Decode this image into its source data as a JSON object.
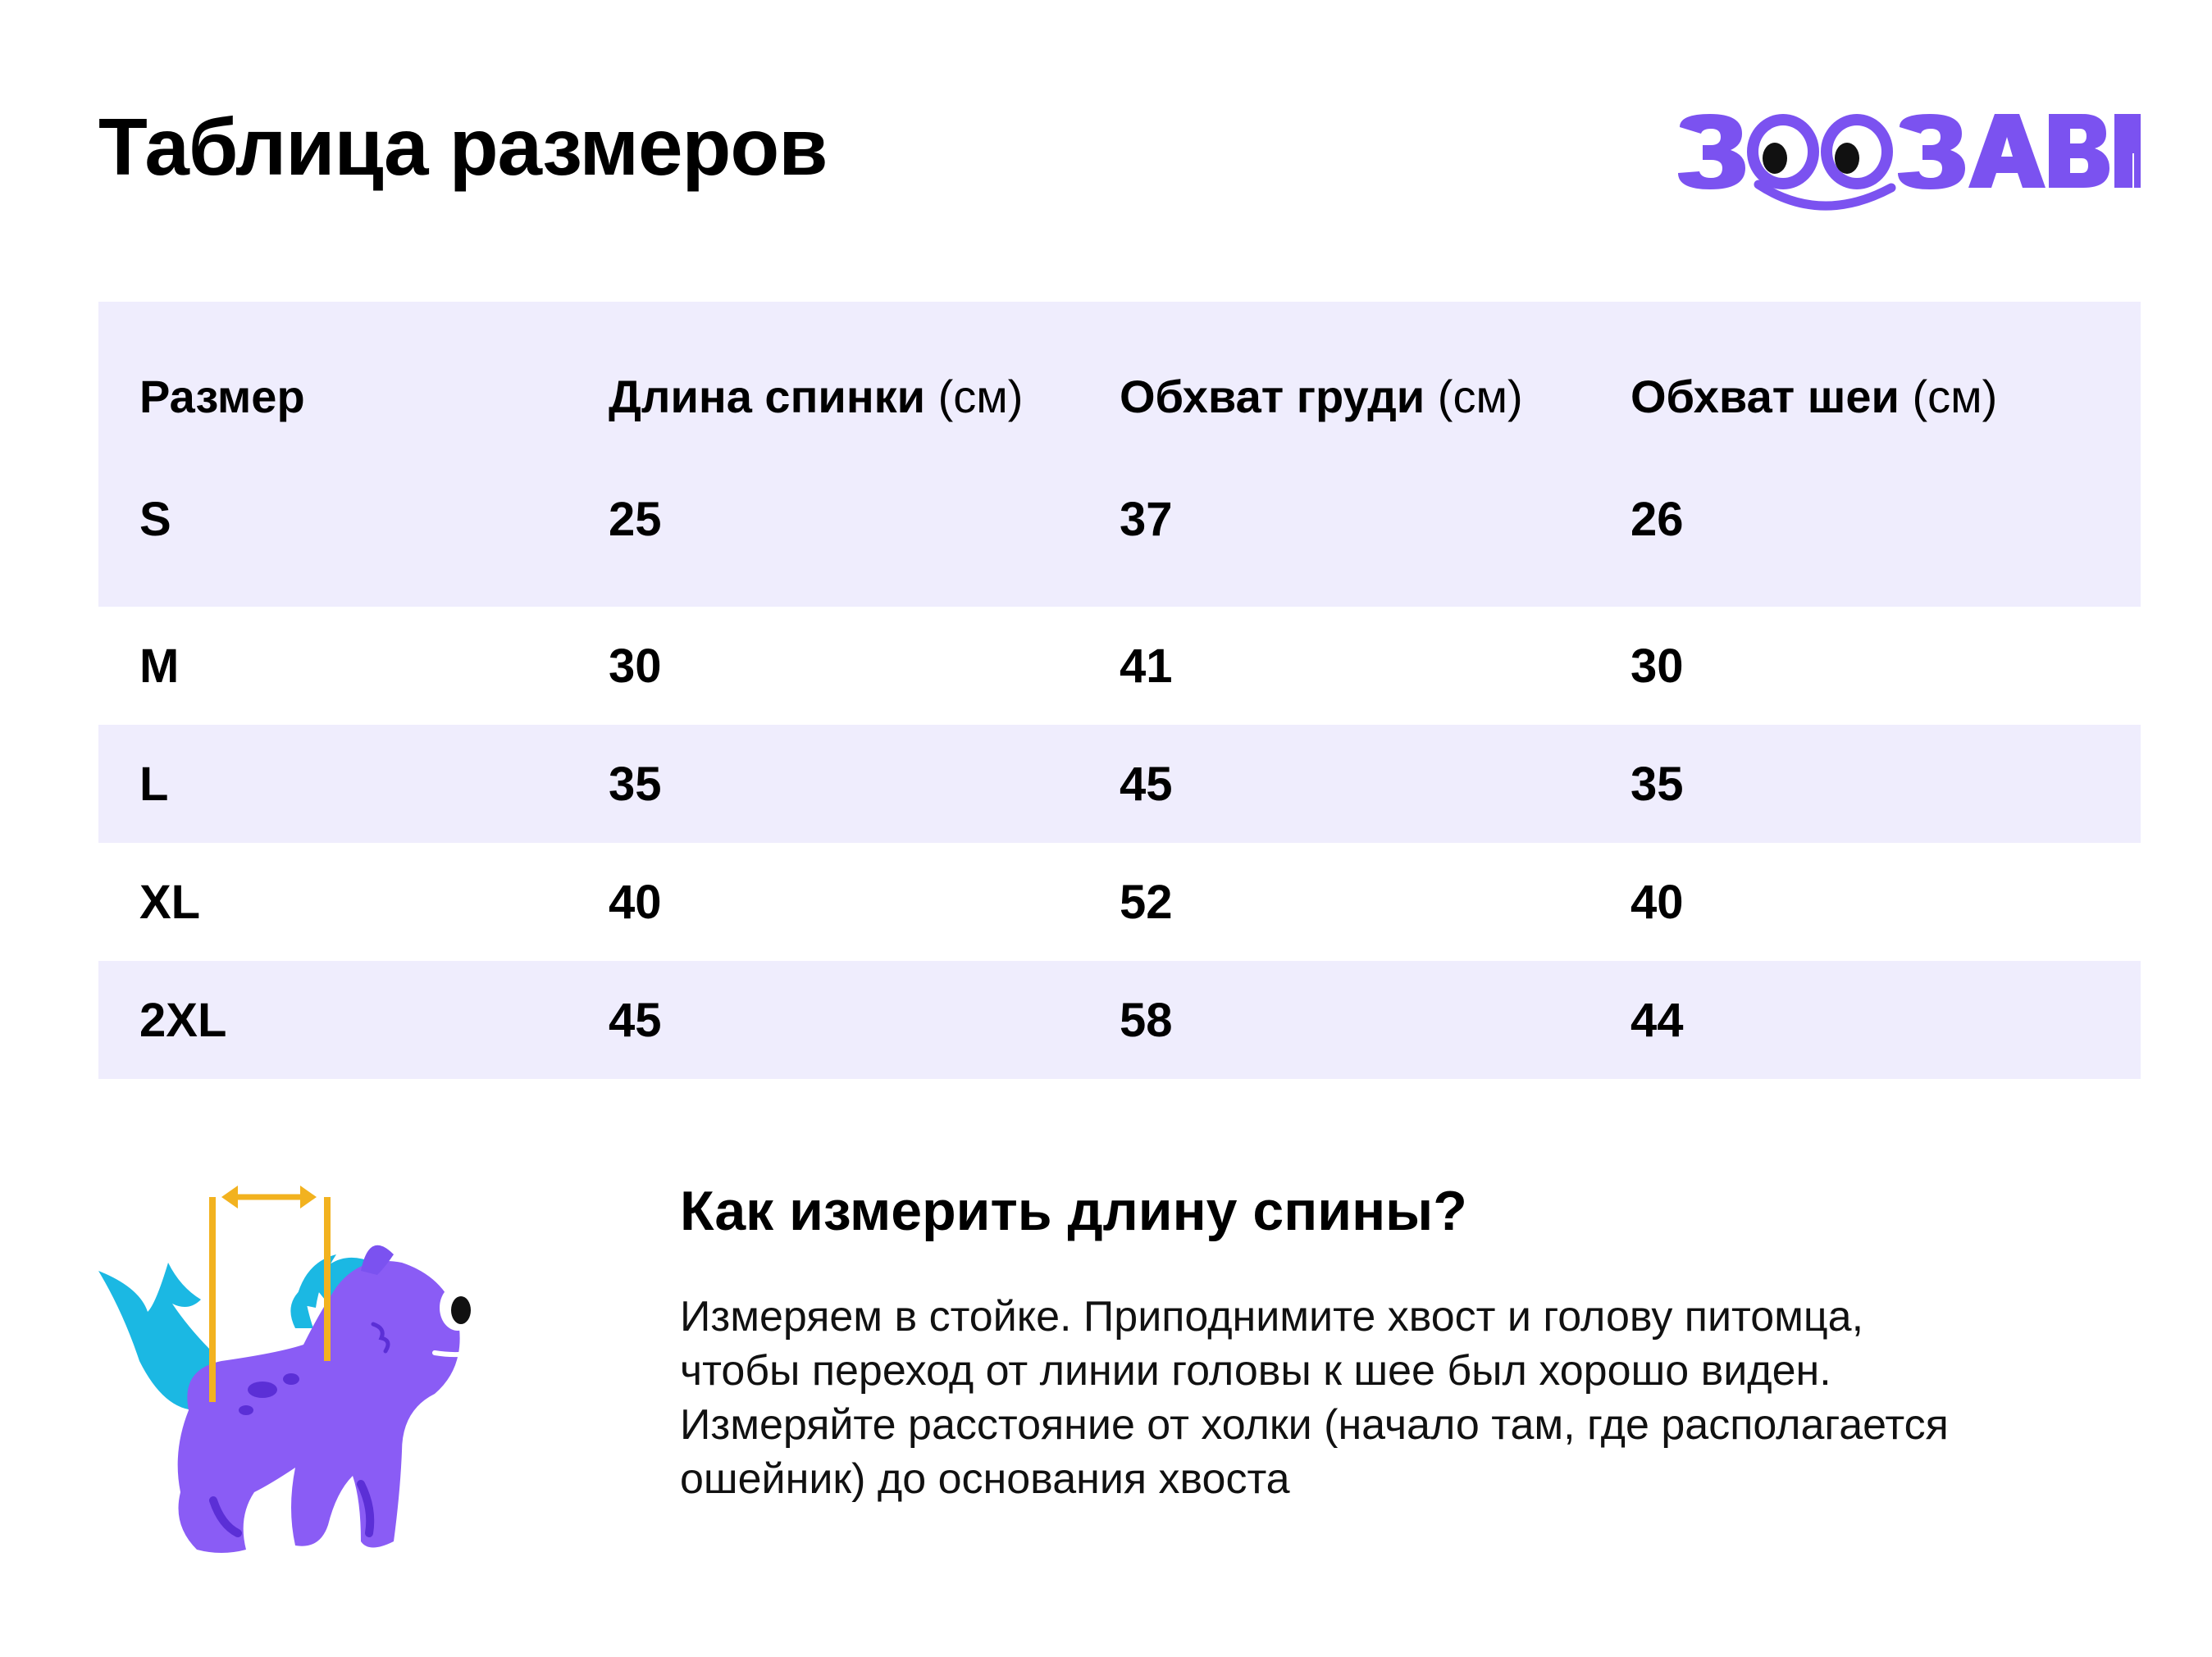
{
  "title": "Таблица размеров",
  "logo": {
    "text": "ЗООЗАВР",
    "color": "#7b52f0"
  },
  "table": {
    "headers": [
      {
        "bold": "Размер",
        "unit": ""
      },
      {
        "bold": "Длина спинки",
        "unit": "(см)"
      },
      {
        "bold": "Обхват груди",
        "unit": "(см)"
      },
      {
        "bold": "Обхват шеи",
        "unit": "(см)"
      }
    ],
    "rows": [
      [
        "S",
        "25",
        "37",
        "26"
      ],
      [
        "M",
        "30",
        "41",
        "30"
      ],
      [
        "L",
        "35",
        "45",
        "35"
      ],
      [
        "XL",
        "40",
        "52",
        "40"
      ],
      [
        "2XL",
        "45",
        "58",
        "44"
      ]
    ]
  },
  "howto": {
    "title": "Как измерить длину спины?",
    "text": "Измеряем в стойке. Приподнимите хвост и голову питомца, чтобы переход от линии головы к шее был хорошо виден. Измеряйте расстояние от холки (начало там, где располагается ошейник) до основания хвоста"
  },
  "colors": {
    "row_stripe": "#efedfd",
    "brand_purple": "#7b52f0",
    "accent_yellow": "#f2b21f",
    "accent_cyan": "#1bb8e3"
  }
}
